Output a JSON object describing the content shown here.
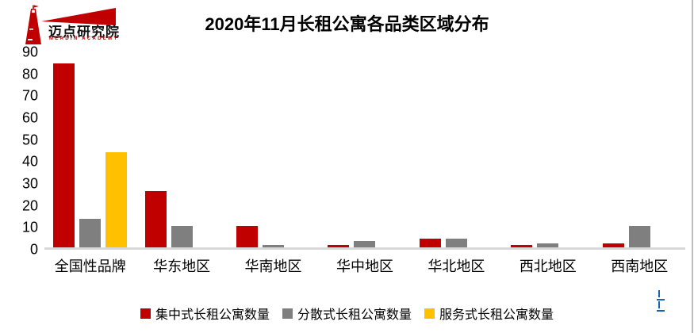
{
  "logo": {
    "name": "迈点研究院",
    "subtitle": "MEADIN ACADEMY",
    "icon_color": "#c00000"
  },
  "title": "2020年11月长租公寓各品类区域分布",
  "chart_data": {
    "type": "bar",
    "title": "2020年11月长租公寓各品类区域分布",
    "categories": [
      "全国性品牌",
      "华东地区",
      "华南地区",
      "华中地区",
      "华北地区",
      "西北地区",
      "西南地区"
    ],
    "series": [
      {
        "name": "集中式长租公寓数量",
        "color": "#c00000",
        "values": [
          85,
          26,
          10,
          1,
          4,
          1,
          2
        ]
      },
      {
        "name": "分散式长租公寓数量",
        "color": "#7f7f7f",
        "values": [
          13,
          10,
          1,
          3,
          4,
          2,
          10
        ]
      },
      {
        "name": "服务式长租公寓数量",
        "color": "#ffc000",
        "values": [
          44,
          0,
          0,
          0,
          0,
          0,
          0
        ]
      }
    ],
    "xlabel": "",
    "ylabel": "",
    "ylim": [
      0,
      90
    ],
    "yticks": [
      0,
      10,
      20,
      30,
      40,
      50,
      60,
      70,
      80,
      90
    ],
    "grid": false,
    "legend_position": "bottom",
    "baseline_color": "#d9d9d9"
  },
  "edge_artifacts": {
    "right_border_color": "#bdbdbd",
    "clipped_link_color": "#1565c0",
    "clipped_link_count": 2
  }
}
